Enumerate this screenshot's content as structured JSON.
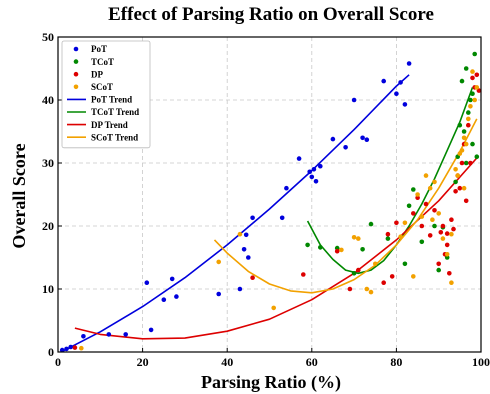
{
  "chart_data": {
    "type": "scatter",
    "title": "Effect of Parsing Ratio on Overall Score",
    "xlabel": "Parsing Ratio (%)",
    "ylabel": "Overall Score",
    "xlim": [
      0,
      100
    ],
    "ylim": [
      0,
      50
    ],
    "xticks": [
      "0",
      "20",
      "40",
      "60",
      "80",
      "100"
    ],
    "yticks": [
      "0",
      "10",
      "20",
      "30",
      "40",
      "50"
    ],
    "grid": true,
    "legend_position": "top-left",
    "series": [
      {
        "name": "PoT",
        "kind": "points",
        "color": "#0000dd",
        "points": [
          [
            1,
            0.3
          ],
          [
            2,
            0.5
          ],
          [
            3,
            0.8
          ],
          [
            6,
            2.5
          ],
          [
            12,
            2.8
          ],
          [
            16,
            2.8
          ],
          [
            21,
            11
          ],
          [
            22,
            3.5
          ],
          [
            25,
            8.3
          ],
          [
            27,
            11.6
          ],
          [
            28,
            8.8
          ],
          [
            38,
            9.2
          ],
          [
            43,
            10
          ],
          [
            44,
            16.3
          ],
          [
            44.5,
            18.6
          ],
          [
            45,
            15
          ],
          [
            46,
            21.3
          ],
          [
            53,
            21.3
          ],
          [
            54,
            26
          ],
          [
            57,
            30.7
          ],
          [
            59.5,
            28.6
          ],
          [
            60,
            27.8
          ],
          [
            60.5,
            29
          ],
          [
            61,
            27.1
          ],
          [
            62,
            29.5
          ],
          [
            65,
            33.8
          ],
          [
            68,
            32.5
          ],
          [
            70,
            40
          ],
          [
            72,
            34
          ],
          [
            73,
            33.7
          ],
          [
            77,
            43
          ],
          [
            80,
            41
          ],
          [
            81,
            42.8
          ],
          [
            82,
            39.3
          ],
          [
            83,
            45.8
          ]
        ]
      },
      {
        "name": "TCoT",
        "kind": "points",
        "color": "#008800",
        "points": [
          [
            59,
            17
          ],
          [
            62,
            16.6
          ],
          [
            66,
            16.5
          ],
          [
            70,
            12.5
          ],
          [
            72,
            16.3
          ],
          [
            74,
            20.3
          ],
          [
            78,
            18
          ],
          [
            82,
            14
          ],
          [
            83,
            23.2
          ],
          [
            84,
            25.8
          ],
          [
            86,
            17.5
          ],
          [
            89,
            20
          ],
          [
            90,
            13
          ],
          [
            91,
            19.8
          ],
          [
            92,
            15
          ],
          [
            94,
            27
          ],
          [
            94.5,
            31
          ],
          [
            95,
            36
          ],
          [
            96,
            35
          ],
          [
            96.5,
            30
          ],
          [
            97,
            38
          ],
          [
            97.5,
            40
          ],
          [
            98,
            33
          ],
          [
            98,
            41
          ],
          [
            98.5,
            47.3
          ],
          [
            99,
            31
          ],
          [
            95.5,
            43
          ],
          [
            96.5,
            45
          ]
        ]
      },
      {
        "name": "DP",
        "kind": "points",
        "color": "#dd0000",
        "points": [
          [
            4,
            0.7
          ],
          [
            46,
            11.8
          ],
          [
            58,
            12.3
          ],
          [
            66,
            16
          ],
          [
            69,
            10
          ],
          [
            71,
            13
          ],
          [
            77,
            11
          ],
          [
            78,
            18.7
          ],
          [
            79,
            12
          ],
          [
            80,
            20.5
          ],
          [
            84,
            22
          ],
          [
            85,
            24.5
          ],
          [
            86,
            20
          ],
          [
            87,
            23.5
          ],
          [
            88,
            18.5
          ],
          [
            89,
            22.5
          ],
          [
            90,
            14
          ],
          [
            91,
            20
          ],
          [
            91.5,
            15.5
          ],
          [
            92,
            18.8
          ],
          [
            92.5,
            12.5
          ],
          [
            93,
            21
          ],
          [
            93.5,
            19.5
          ],
          [
            94,
            25.5
          ],
          [
            94.5,
            28
          ],
          [
            95,
            26
          ],
          [
            95.5,
            30
          ],
          [
            96,
            33
          ],
          [
            96.5,
            24
          ],
          [
            97,
            36
          ],
          [
            97.5,
            30
          ],
          [
            98,
            43.5
          ],
          [
            98.5,
            42
          ],
          [
            99,
            44
          ],
          [
            99.5,
            41.5
          ],
          [
            90.5,
            19
          ],
          [
            92,
            17
          ]
        ]
      },
      {
        "name": "SCoT",
        "kind": "points",
        "color": "#f2a100",
        "points": [
          [
            5.5,
            0.6
          ],
          [
            38,
            14.3
          ],
          [
            43,
            18.7
          ],
          [
            51,
            7
          ],
          [
            67,
            16.2
          ],
          [
            70,
            18.2
          ],
          [
            71,
            18
          ],
          [
            73,
            10
          ],
          [
            74,
            9.5
          ],
          [
            75,
            14
          ],
          [
            81,
            18.3
          ],
          [
            82,
            20.5
          ],
          [
            84,
            12
          ],
          [
            85,
            25
          ],
          [
            86,
            21.5
          ],
          [
            87,
            28
          ],
          [
            88,
            26
          ],
          [
            89,
            27
          ],
          [
            90,
            22
          ],
          [
            91,
            18
          ],
          [
            92,
            15.5
          ],
          [
            93,
            18.7
          ],
          [
            94,
            29
          ],
          [
            94.5,
            28
          ],
          [
            95,
            31.5
          ],
          [
            95.5,
            32
          ],
          [
            96,
            34
          ],
          [
            96.5,
            33
          ],
          [
            97,
            37
          ],
          [
            97.5,
            39
          ],
          [
            98,
            44.5
          ],
          [
            98.5,
            40
          ],
          [
            99,
            42
          ],
          [
            93,
            11
          ],
          [
            88.5,
            21
          ],
          [
            96,
            26
          ]
        ]
      },
      {
        "name": "PoT Trend",
        "kind": "line",
        "color": "#0000dd",
        "x": [
          1,
          10,
          20,
          30,
          40,
          50,
          60,
          70,
          80,
          83
        ],
        "y": [
          0.1,
          3.2,
          7.2,
          11.8,
          17.0,
          22.7,
          28.8,
          35.3,
          42.2,
          44.0
        ]
      },
      {
        "name": "TCoT Trend",
        "kind": "line",
        "color": "#008800",
        "x": [
          59,
          62,
          65,
          68,
          71,
          74,
          77,
          80,
          83,
          86,
          89,
          92,
          95,
          98
        ],
        "y": [
          20.8,
          17.0,
          14.7,
          13.0,
          12.5,
          13.0,
          14.5,
          17.0,
          20.0,
          23.5,
          27.5,
          32.0,
          36.5,
          42.0
        ]
      },
      {
        "name": "DP Trend",
        "kind": "line",
        "color": "#dd0000",
        "x": [
          4,
          10,
          20,
          30,
          40,
          50,
          60,
          70,
          80,
          90,
          99
        ],
        "y": [
          3.8,
          2.8,
          2.1,
          2.2,
          3.3,
          5.2,
          8.3,
          12.5,
          17.8,
          24.0,
          30.8
        ]
      },
      {
        "name": "SCoT Trend",
        "kind": "line",
        "color": "#f2a100",
        "x": [
          37,
          40,
          45,
          50,
          55,
          60,
          65,
          70,
          75,
          80,
          85,
          90,
          95,
          99
        ],
        "y": [
          17.8,
          15.7,
          12.8,
          10.8,
          9.7,
          9.4,
          10.0,
          11.5,
          13.8,
          17.0,
          21.0,
          26.0,
          31.8,
          37.0
        ]
      }
    ]
  }
}
